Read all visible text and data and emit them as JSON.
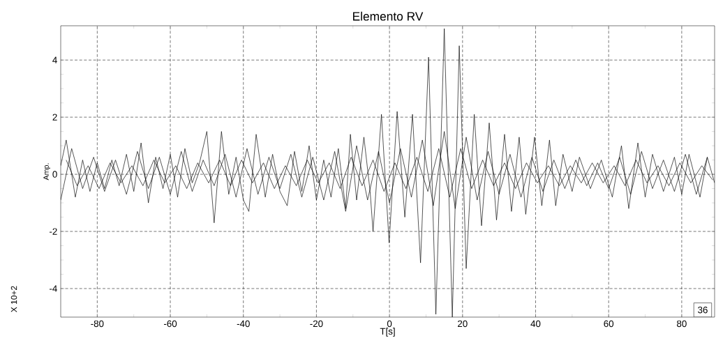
{
  "chart_data": {
    "type": "line",
    "title": "Elemento RV",
    "xlabel": "T[s]",
    "ylabel": "Amp.",
    "annotations": [
      "X 10+2",
      "36"
    ],
    "xlim": [
      -90,
      89
    ],
    "ylim": [
      -5.0,
      5.2
    ],
    "xticks": [
      -80,
      -60,
      -40,
      -20,
      0,
      20,
      40,
      60,
      80
    ],
    "yticks": [
      -4,
      -2,
      0,
      2,
      4
    ],
    "grid": true,
    "line_style": "solid",
    "marker": "none",
    "series": [
      {
        "color": "#000000",
        "x": [
          -90,
          -88.5,
          -86,
          -84,
          -82,
          -80,
          -78,
          -76,
          -74,
          -72,
          -70,
          -68,
          -66,
          -64,
          -62,
          -60,
          -58,
          -56,
          -54,
          -52,
          -50,
          -48,
          -46,
          -44,
          -42,
          -40,
          -38.5,
          -36.5,
          -34,
          -32,
          -30,
          -28,
          -26,
          -24,
          -22,
          -20,
          -18,
          -16,
          -14,
          -12,
          -10.7,
          -9,
          -7,
          -5.3,
          -4.5,
          -2.2,
          -0.1,
          2.1,
          4.2,
          6.3,
          8.5,
          10.7,
          12.7,
          15.0,
          17.2,
          19.1,
          21.0,
          23.2,
          25.2,
          27.3,
          29.3,
          31.5,
          33.4,
          35.5,
          37.3,
          39.7,
          41.7,
          43.8,
          45.5,
          47.5,
          50,
          52,
          55,
          58,
          61,
          63.5,
          65.5,
          68,
          70,
          72,
          75,
          78,
          80,
          82,
          85,
          87,
          89
        ],
        "values": [
          0.3,
          1.2,
          -0.8,
          0.5,
          -0.6,
          0.4,
          -0.5,
          0.5,
          -0.4,
          0.7,
          -0.6,
          1.1,
          -1.0,
          0.6,
          -0.5,
          0.7,
          -0.8,
          0.9,
          -0.3,
          0.4,
          1.5,
          -1.7,
          1.5,
          -0.7,
          0.6,
          -0.9,
          -1.3,
          1.4,
          -0.8,
          0.7,
          -0.6,
          -1.1,
          0.8,
          -0.6,
          1.0,
          -0.9,
          0.5,
          -0.8,
          0.9,
          -1.2,
          1.4,
          -0.9,
          1.3,
          -0.6,
          -2.0,
          2.1,
          -2.4,
          2.2,
          -1.5,
          2.1,
          -3.1,
          4.1,
          -4.9,
          5.1,
          -5.0,
          4.5,
          -3.3,
          2.1,
          -1.8,
          1.8,
          -1.6,
          1.4,
          -1.3,
          1.3,
          -1.4,
          1.3,
          -1.1,
          1.2,
          -1.1,
          0.7,
          -0.6,
          0.6,
          -0.5,
          0.5,
          -0.8,
          1.0,
          -1.2,
          1.1,
          -0.8,
          0.7,
          -0.6,
          0.6,
          -0.7,
          0.7,
          -0.8,
          0.6,
          -0.3
        ]
      },
      {
        "color": "#000000",
        "x": [
          -90,
          -87,
          -84,
          -81,
          -78,
          -75,
          -72,
          -69,
          -66,
          -63,
          -60,
          -57,
          -54,
          -51,
          -48,
          -45,
          -42,
          -39,
          -36,
          -33,
          -30,
          -27,
          -24,
          -21,
          -18,
          -15,
          -12,
          -9,
          -6,
          -3,
          0,
          3,
          6,
          9,
          12,
          15,
          18,
          21,
          24,
          27,
          30,
          33,
          36,
          39,
          42,
          45,
          48,
          51,
          54,
          57,
          60,
          63,
          66,
          69,
          72,
          75,
          78,
          81,
          84,
          87
        ],
        "values": [
          -0.9,
          0.9,
          -0.5,
          0.6,
          -0.6,
          0.5,
          -0.7,
          0.8,
          -0.5,
          0.6,
          -0.7,
          0.8,
          -0.6,
          0.5,
          -0.4,
          0.7,
          -0.8,
          0.9,
          -0.7,
          0.6,
          -0.5,
          0.7,
          -0.8,
          0.6,
          -0.9,
          0.8,
          -1.3,
          1.0,
          -0.9,
          0.8,
          -1.0,
          0.9,
          -0.8,
          1.2,
          -1.1,
          1.5,
          -1.2,
          1.3,
          -0.9,
          0.8,
          -0.7,
          0.7,
          -0.8,
          0.6,
          -0.6,
          0.5,
          -0.5,
          0.5,
          -0.4,
          0.4,
          -0.5,
          0.6,
          -0.7,
          0.8,
          -0.5,
          0.5,
          -0.6,
          0.7,
          -0.7,
          0.6
        ]
      },
      {
        "color": "#000000",
        "x": [
          -88.5,
          -85.5,
          -82.5,
          -79.5,
          -76.5,
          -73.5,
          -70.5,
          -67.5,
          -64.5,
          -61.5,
          -58.5,
          -55.5,
          -52.5,
          -49.5,
          -46.5,
          -43.5,
          -40.5,
          -37.5,
          -34.5,
          -31.5,
          -28.5,
          -25.5,
          -22.5,
          -19.5,
          -16.5,
          -13.5,
          -10.5,
          -7.5,
          -4.5,
          -1.5,
          1.5,
          4.5,
          7.5,
          10.5,
          13.5,
          16.5,
          19.5,
          22.5,
          25.5,
          28.5,
          31.5,
          34.5,
          37.5,
          40.5,
          43.5,
          46.5,
          49.5,
          52.5,
          55.5,
          58.5,
          61.5,
          64.5,
          67.5,
          70.5,
          73.5,
          76.5,
          79.5,
          82.5,
          85.5,
          88.5
        ],
        "values": [
          0.5,
          -0.4,
          0.3,
          -0.5,
          0.4,
          -0.3,
          0.3,
          -0.4,
          0.5,
          -0.3,
          0.3,
          -0.5,
          0.4,
          -0.3,
          0.5,
          -0.4,
          0.5,
          -0.3,
          0.4,
          -0.5,
          0.3,
          -0.4,
          0.5,
          -0.3,
          0.4,
          -0.5,
          0.6,
          -0.4,
          0.5,
          -0.6,
          0.4,
          -0.5,
          0.6,
          -0.6,
          0.9,
          -0.8,
          0.9,
          -0.5,
          0.5,
          -0.4,
          0.4,
          -0.5,
          0.4,
          -0.3,
          0.3,
          -0.4,
          0.3,
          -0.3,
          0.4,
          -0.3,
          0.3,
          -0.4,
          0.5,
          -0.3,
          0.3,
          -0.4,
          0.4,
          -0.3,
          0.3,
          -0.2
        ]
      }
    ]
  }
}
